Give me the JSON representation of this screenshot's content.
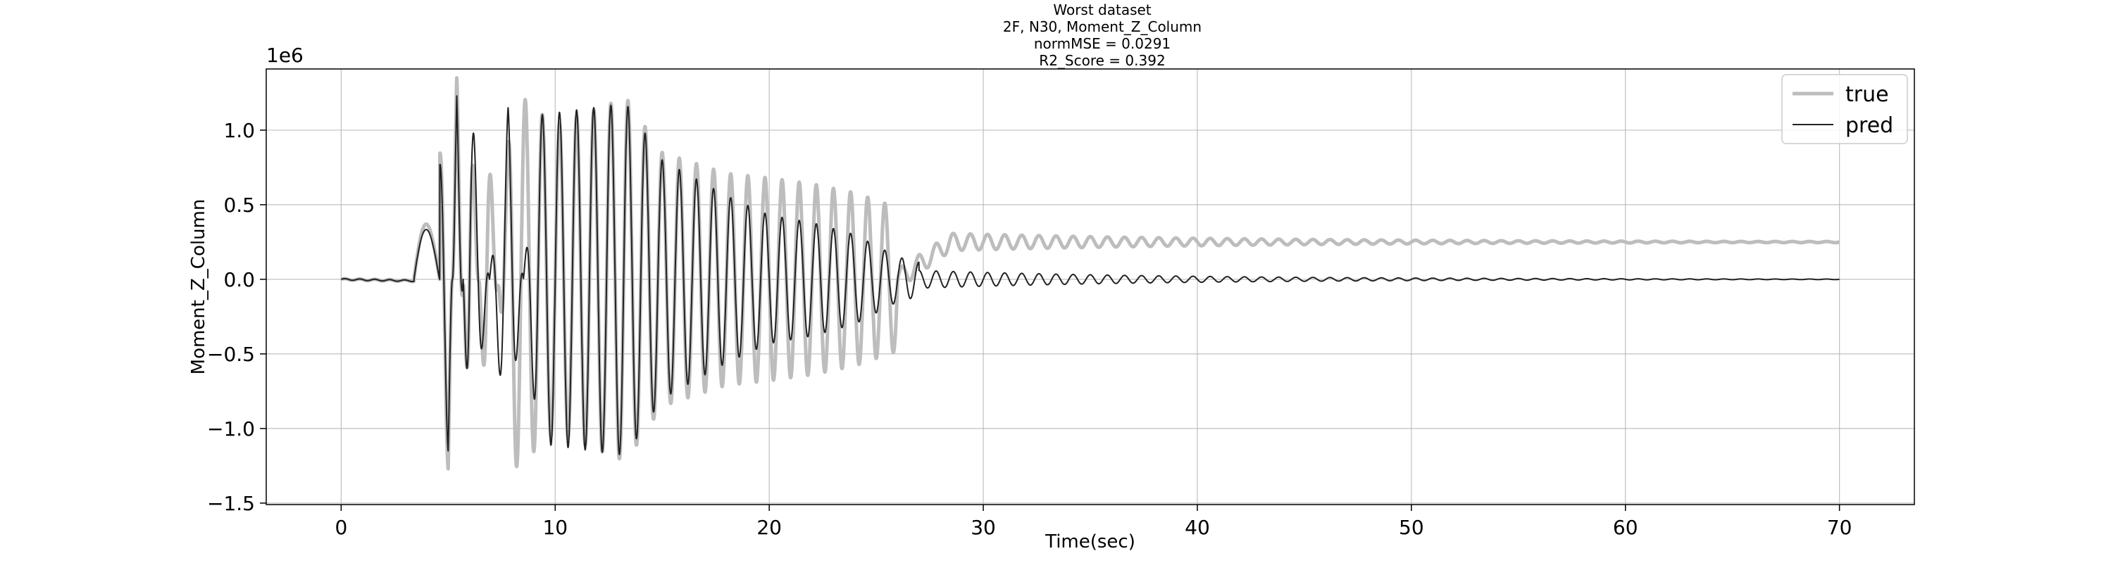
{
  "chart_data": {
    "type": "line",
    "title_lines": [
      "Worst dataset",
      "2F, N30, Moment_Z_Column",
      "normMSE = 0.0291",
      "R2_Score = 0.392"
    ],
    "xlabel": "Time(sec)",
    "ylabel": "Moment_Z_Column",
    "y_offset_text": "1e6",
    "xlim": [
      -3.5,
      73.5
    ],
    "ylim": [
      -1.51,
      1.41
    ],
    "x_ticks": [
      0,
      10,
      20,
      30,
      40,
      50,
      60,
      70
    ],
    "x_tick_labels": [
      "0",
      "10",
      "20",
      "30",
      "40",
      "50",
      "60",
      "70"
    ],
    "y_ticks": [
      1.0,
      0.5,
      0.0,
      -0.5,
      -1.0,
      -1.5
    ],
    "y_tick_labels": [
      "1.0",
      "0.5",
      "0.0",
      "−0.5",
      "−1.0",
      "−1.5"
    ],
    "grid": true,
    "legend_position": "top-right",
    "series": [
      {
        "name": "true",
        "color": "#bdbdbd",
        "style": "thick",
        "description_points": [
          [
            0,
            0.01
          ],
          [
            3.5,
            -0.02
          ],
          [
            4.2,
            0.4
          ],
          [
            5.0,
            1.27
          ],
          [
            5.4,
            -1.38
          ],
          [
            6.0,
            1.26
          ],
          [
            6.8,
            -1.05
          ],
          [
            8.0,
            1.28
          ],
          [
            10,
            1.03
          ],
          [
            13.3,
            1.22
          ],
          [
            15,
            0.85
          ],
          [
            18,
            0.71
          ],
          [
            20,
            0.68
          ],
          [
            22,
            0.64
          ],
          [
            24,
            0.58
          ],
          [
            26,
            0.48
          ],
          [
            28,
            0.32
          ],
          [
            30,
            0.3
          ],
          [
            35,
            0.29
          ],
          [
            40,
            0.28
          ],
          [
            50,
            0.26
          ],
          [
            60,
            0.25
          ],
          [
            70,
            0.25
          ]
        ]
      },
      {
        "name": "pred",
        "color": "#222222",
        "style": "thin",
        "description_points": [
          [
            0,
            0.01
          ],
          [
            3.5,
            -0.02
          ],
          [
            4.2,
            0.37
          ],
          [
            5.0,
            1.15
          ],
          [
            5.4,
            -1.23
          ],
          [
            6.0,
            1.23
          ],
          [
            7.8,
            -1.15
          ],
          [
            9.2,
            1.1
          ],
          [
            13.3,
            1.18
          ],
          [
            15,
            0.8
          ],
          [
            18,
            0.56
          ],
          [
            20,
            0.43
          ],
          [
            22,
            0.38
          ],
          [
            24,
            0.3
          ],
          [
            26,
            0.15
          ],
          [
            28,
            0.08
          ],
          [
            30,
            0.05
          ],
          [
            40,
            0.03
          ],
          [
            50,
            0.01
          ],
          [
            60,
            0.0
          ],
          [
            70,
            0.0
          ]
        ]
      }
    ]
  }
}
